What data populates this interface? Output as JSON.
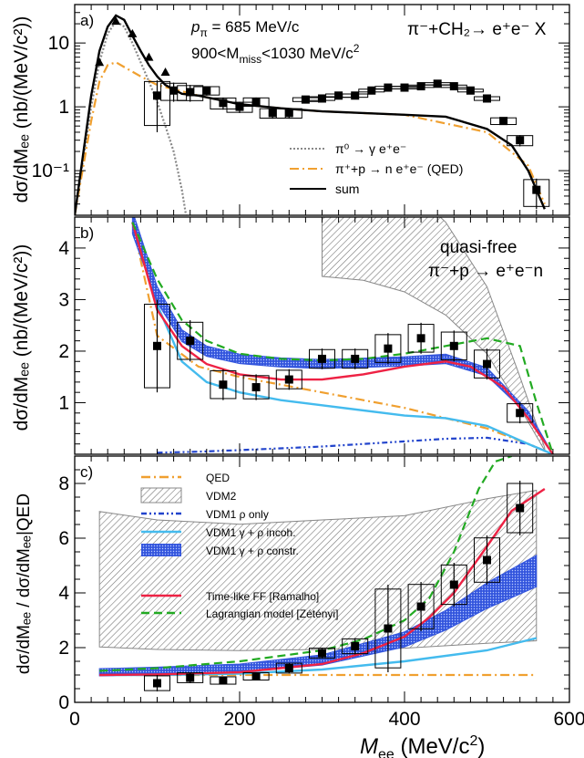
{
  "figure": {
    "x_axis": {
      "label_main": "M",
      "label_sub": "ee",
      "label_units": " (MeV/c",
      "label_sup": "2",
      "label_close": ")",
      "ticks": [
        "0",
        "200",
        "400",
        "600"
      ]
    }
  },
  "chart_data": [
    {
      "type": "line",
      "panel": "a)",
      "text": {
        "p_line": "p",
        "p_sub": "π",
        "p_rest": " = 685 MeV/c",
        "mmiss": "900<M",
        "mmiss_sub": "miss",
        "mmiss_rest": "<1030 MeV/c",
        "mmiss_sup": "2",
        "reaction": "π⁻+CH₂→ e⁺e⁻ X"
      },
      "ylabel": "dσ/dM_ee (nb/(MeV/c²))",
      "yscale": "log",
      "ylim": [
        0.02,
        40
      ],
      "xlim": [
        0,
        600
      ],
      "y_ticks": [
        "10",
        "1",
        "10⁻¹"
      ],
      "legend": [
        "π⁰ → γ e⁺e⁻",
        "π⁺+p → n e⁺e⁻  (QED)",
        "sum"
      ],
      "series": [
        {
          "name": "π⁰ → γ e⁺e⁻",
          "style": "dotted",
          "color": "#888888",
          "x": [
            0,
            20,
            30,
            40,
            50,
            60,
            70,
            80,
            90,
            100,
            110,
            120,
            130,
            135
          ],
          "y": [
            0.02,
            1,
            5,
            14,
            22,
            18,
            10,
            5,
            2.5,
            1.2,
            0.5,
            0.2,
            0.05,
            0.02
          ]
        },
        {
          "name": "π⁺+p → n e⁺e⁻  (QED)",
          "style": "dashdot",
          "color": "#f0a030",
          "x": [
            0,
            20,
            30,
            40,
            50,
            60,
            80,
            100,
            150,
            200,
            250,
            300,
            400,
            500,
            550,
            570
          ],
          "y": [
            0.02,
            0.6,
            2.5,
            4.5,
            5,
            4.2,
            3,
            2.2,
            1.5,
            1.1,
            0.95,
            0.85,
            0.75,
            0.4,
            0.12,
            0.03
          ]
        },
        {
          "name": "sum",
          "style": "solid",
          "color": "#000000",
          "x": [
            0,
            20,
            30,
            40,
            50,
            60,
            70,
            80,
            90,
            100,
            110,
            130,
            150,
            200,
            250,
            300,
            400,
            450,
            500,
            530,
            550,
            560,
            570
          ],
          "y": [
            0.02,
            1.5,
            7.5,
            18,
            27,
            23,
            13,
            7.5,
            4.5,
            3,
            2.2,
            1.6,
            1.5,
            1.1,
            0.95,
            0.85,
            0.75,
            0.7,
            0.45,
            0.25,
            0.1,
            0.05,
            0.025
          ]
        },
        {
          "name": "π⁰ data (triangles)",
          "style": "markers-triangle",
          "color": "#000000",
          "x": [
            30,
            50,
            70,
            90,
            110
          ],
          "y": [
            5,
            22,
            14,
            6,
            3.5
          ]
        },
        {
          "name": "data",
          "style": "markers-square",
          "color": "#000000",
          "x": [
            100,
            120,
            140,
            160,
            180,
            200,
            220,
            240,
            260,
            280,
            300,
            320,
            340,
            360,
            380,
            400,
            420,
            440,
            460,
            480,
            500,
            520,
            540,
            560
          ],
          "y": [
            1.5,
            1.8,
            1.7,
            1.8,
            1.15,
            1,
            1.2,
            0.8,
            0.8,
            1.3,
            1.35,
            1.5,
            1.5,
            1.8,
            2,
            2,
            2.1,
            2.3,
            2.1,
            1.8,
            1.35,
            0.6,
            0.3,
            0.05
          ],
          "err": [
            1.1,
            0.6,
            0.5,
            0.3,
            0.25,
            0.2,
            0.2,
            0.15,
            0.15,
            0.1,
            0.1,
            0.1,
            0.1,
            0.1,
            0.1,
            0.1,
            0.1,
            0.1,
            0.1,
            0.1,
            0.1,
            0.08,
            0.06,
            0.025
          ]
        }
      ]
    },
    {
      "type": "line",
      "panel": "b)",
      "text": {
        "qf": "quasi-free",
        "reaction": "π⁻+p → e⁺e⁻n"
      },
      "ylabel": "dσ/dM_ee (nb/(MeV/c²))",
      "ylim": [
        0,
        4.6
      ],
      "xlim": [
        0,
        600
      ],
      "y_ticks": [
        "1",
        "2",
        "3",
        "4"
      ],
      "series": [
        {
          "name": "QED",
          "style": "dashdot",
          "color": "#f0a030",
          "x": [
            70,
            100,
            150,
            200,
            300,
            400,
            500,
            550,
            580
          ],
          "y": [
            4.5,
            2.3,
            1.7,
            1.5,
            1.2,
            0.9,
            0.5,
            0.2,
            0.0
          ]
        },
        {
          "name": "VDM2",
          "style": "hatch",
          "color": "#888888",
          "x": [
            300,
            350,
            400,
            450,
            500,
            540,
            570
          ],
          "y": [
            4.6,
            4.5,
            4.2,
            3.6,
            2.6,
            1.2,
            0.1
          ]
        },
        {
          "name": "VDM1 ρ only",
          "style": "dashdotdot",
          "color": "#2244cc",
          "x": [
            100,
            150,
            200,
            300,
            400,
            450,
            500,
            550,
            580
          ],
          "y": [
            0.03,
            0.05,
            0.08,
            0.15,
            0.25,
            0.3,
            0.32,
            0.2,
            0.0
          ]
        },
        {
          "name": "VDM1 γ + ρ incoh.",
          "style": "solid",
          "color": "#44bbee",
          "x": [
            70,
            100,
            130,
            160,
            200,
            250,
            300,
            400,
            450,
            500,
            550,
            580
          ],
          "y": [
            4.5,
            2.9,
            1.8,
            1.4,
            1.2,
            1.05,
            0.95,
            0.75,
            0.7,
            0.55,
            0.2,
            0.0
          ]
        },
        {
          "name": "VDM1 γ + ρ constr.",
          "style": "band",
          "color": "#3355dd",
          "x": [
            70,
            100,
            130,
            160,
            200,
            250,
            300,
            400,
            450,
            500,
            550,
            580
          ],
          "y": [
            4.5,
            3.1,
            2.3,
            2,
            1.85,
            1.78,
            1.75,
            1.8,
            1.85,
            1.6,
            0.8,
            0.0
          ]
        },
        {
          "name": "Time-like FF [Ramalho]",
          "style": "solid",
          "color": "#ee2244",
          "x": [
            70,
            100,
            130,
            160,
            200,
            250,
            300,
            350,
            400,
            450,
            480,
            520,
            550,
            580
          ],
          "y": [
            4.5,
            2.8,
            2.1,
            1.75,
            1.55,
            1.45,
            1.45,
            1.55,
            1.7,
            1.8,
            1.7,
            1.3,
            0.7,
            0.0
          ]
        },
        {
          "name": "Lagrangian model [Zétényi]",
          "style": "dashed",
          "color": "#22aa22",
          "x": [
            70,
            100,
            130,
            160,
            200,
            250,
            300,
            350,
            400,
            450,
            500,
            540,
            560,
            580
          ],
          "y": [
            4.5,
            3.4,
            2.6,
            2.2,
            1.95,
            1.85,
            1.82,
            1.85,
            1.95,
            2.1,
            2.25,
            2.1,
            1.0,
            0.0
          ]
        },
        {
          "name": "data",
          "style": "markers-square",
          "color": "#000000",
          "x": [
            100,
            140,
            180,
            220,
            260,
            300,
            340,
            380,
            420,
            460,
            500,
            540
          ],
          "y": [
            2.1,
            2.2,
            1.35,
            1.3,
            1.45,
            1.85,
            1.85,
            2.05,
            2.25,
            2.1,
            1.75,
            0.8
          ],
          "err": [
            0.9,
            0.4,
            0.3,
            0.25,
            0.2,
            0.2,
            0.2,
            0.3,
            0.3,
            0.3,
            0.3,
            0.2
          ]
        }
      ]
    },
    {
      "type": "line",
      "panel": "c)",
      "ylabel": "dσ/dM_ee / dσ/dM_ee|QED",
      "ylim": [
        0,
        9
      ],
      "xlim": [
        0,
        600
      ],
      "y_ticks": [
        "0",
        "2",
        "4",
        "6",
        "8"
      ],
      "legend": [
        "QED",
        "VDM2",
        "VDM1 ρ only",
        "VDM1 γ + ρ incoh.",
        "VDM1 γ + ρ constr.",
        "Time-like FF [Ramalho]",
        "Lagrangian model [Zétényi]"
      ],
      "series": [
        {
          "name": "QED",
          "style": "dashdot",
          "color": "#f0a030",
          "x": [
            30,
            560
          ],
          "y": [
            1,
            1
          ]
        },
        {
          "name": "VDM2",
          "style": "hatch",
          "color": "#888888",
          "x": [
            30,
            100,
            200,
            300,
            400,
            500,
            560
          ],
          "y": [
            4.5,
            4.3,
            4.2,
            4.3,
            4.4,
            4.8,
            5
          ]
        },
        {
          "name": "VDM1 ρ only",
          "style": "dashdotdot",
          "color": "#2244cc",
          "x": [
            30,
            100,
            200,
            300,
            400,
            450,
            500,
            560
          ],
          "y": [
            1.05,
            1.1,
            1.2,
            1.5,
            2.2,
            2.9,
            3.8,
            4.6
          ]
        },
        {
          "name": "VDM1 γ + ρ incoh.",
          "style": "solid",
          "color": "#44bbee",
          "x": [
            30,
            100,
            200,
            300,
            400,
            500,
            560
          ],
          "y": [
            1.0,
            1.0,
            1.05,
            1.2,
            1.5,
            1.9,
            2.35
          ]
        },
        {
          "name": "VDM1 γ + ρ constr.",
          "style": "band",
          "color": "#3355dd",
          "x": [
            30,
            100,
            200,
            300,
            400,
            450,
            500,
            560
          ],
          "y": [
            1.1,
            1.15,
            1.25,
            1.55,
            2.3,
            3.0,
            3.9,
            4.8
          ]
        },
        {
          "name": "Time-like FF [Ramalho]",
          "style": "solid",
          "color": "#ee2244",
          "x": [
            30,
            100,
            200,
            300,
            350,
            400,
            430,
            460,
            500,
            530,
            570
          ],
          "y": [
            1.0,
            1.02,
            1.1,
            1.4,
            1.8,
            2.4,
            3.1,
            4.0,
            5.7,
            7.0,
            7.8
          ]
        },
        {
          "name": "Lagrangian model [Zétényi]",
          "style": "dashed",
          "color": "#22aa22",
          "x": [
            30,
            100,
            200,
            300,
            350,
            400,
            430,
            460,
            490,
            510,
            530
          ],
          "y": [
            1.15,
            1.25,
            1.5,
            1.9,
            2.3,
            3.0,
            3.8,
            5.5,
            7.8,
            8.8,
            9.0
          ]
        },
        {
          "name": "data",
          "style": "markers-square",
          "color": "#000000",
          "x": [
            100,
            140,
            180,
            220,
            260,
            300,
            340,
            380,
            420,
            460,
            500,
            540
          ],
          "y": [
            0.7,
            0.9,
            0.8,
            0.95,
            1.25,
            1.8,
            2.05,
            2.7,
            3.5,
            4.3,
            5.2,
            7.1
          ],
          "err": [
            0.3,
            0.2,
            0.15,
            0.15,
            0.2,
            0.2,
            0.3,
            1.6,
            0.9,
            0.8,
            0.9,
            1.0
          ]
        }
      ]
    }
  ]
}
